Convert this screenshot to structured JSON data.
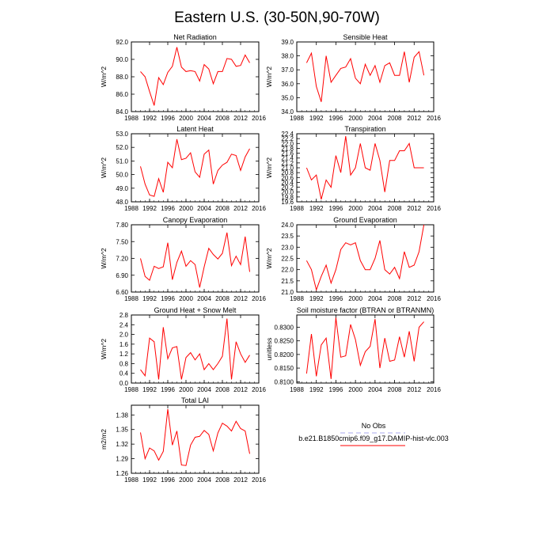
{
  "page": {
    "title": "Eastern U.S. (30-50N,90-70W)"
  },
  "legend": {
    "entries": [
      {
        "label": "No Obs",
        "color": "#aaaaee",
        "dash": true
      },
      {
        "label": "b.e21.B1850cmip6.f09_g17.DAMIP-hist-vlc.003",
        "color": "#ff0000",
        "dash": false
      }
    ]
  },
  "colors": {
    "series": "#ff0000",
    "axis": "#000000",
    "obs": "#aaaaee"
  },
  "chart_data": [
    {
      "type": "line",
      "title": "Net Radiation",
      "ylabel": "W/m^2",
      "xlim": [
        1988,
        2016
      ],
      "xticks": [
        1988,
        1992,
        1996,
        2000,
        2004,
        2008,
        2012,
        2016
      ],
      "ylim": [
        84.0,
        92.0
      ],
      "yticks": [
        "84.0",
        "86.0",
        "88.0",
        "90.0",
        "92.0"
      ],
      "x": [
        1990,
        1991,
        1992,
        1993,
        1994,
        1995,
        1996,
        1997,
        1998,
        1999,
        2000,
        2001,
        2002,
        2003,
        2004,
        2005,
        2006,
        2007,
        2008,
        2009,
        2010,
        2011,
        2012,
        2013,
        2014
      ],
      "series": [
        {
          "values": [
            88.6,
            88.0,
            86.3,
            84.7,
            87.9,
            87.1,
            88.5,
            89.2,
            91.4,
            89.1,
            88.6,
            88.7,
            88.6,
            87.5,
            89.4,
            88.9,
            87.2,
            88.6,
            88.6,
            90.1,
            90.0,
            89.2,
            89.3,
            90.5,
            89.6
          ]
        }
      ]
    },
    {
      "type": "line",
      "title": "Sensible Heat",
      "ylabel": "W/m^2",
      "xlim": [
        1988,
        2016
      ],
      "xticks": [
        1988,
        1992,
        1996,
        2000,
        2004,
        2008,
        2012,
        2016
      ],
      "ylim": [
        34.0,
        39.0
      ],
      "yticks": [
        "34.0",
        "35.0",
        "36.0",
        "37.0",
        "38.0",
        "39.0"
      ],
      "x": [
        1990,
        1991,
        1992,
        1993,
        1994,
        1995,
        1996,
        1997,
        1998,
        1999,
        2000,
        2001,
        2002,
        2003,
        2004,
        2005,
        2006,
        2007,
        2008,
        2009,
        2010,
        2011,
        2012,
        2013,
        2014
      ],
      "series": [
        {
          "values": [
            37.5,
            38.2,
            35.8,
            34.7,
            38.0,
            36.1,
            36.6,
            37.1,
            37.2,
            37.8,
            36.4,
            36.0,
            37.4,
            36.6,
            37.3,
            36.1,
            37.3,
            37.5,
            36.6,
            36.6,
            38.3,
            36.1,
            37.9,
            38.3,
            36.6
          ]
        }
      ]
    },
    {
      "type": "line",
      "title": "Latent Heat",
      "ylabel": "W/m^2",
      "xlim": [
        1988,
        2016
      ],
      "xticks": [
        1988,
        1992,
        1996,
        2000,
        2004,
        2008,
        2012,
        2016
      ],
      "ylim": [
        48.0,
        53.0
      ],
      "yticks": [
        "48.0",
        "49.0",
        "50.0",
        "51.0",
        "52.0",
        "53.0"
      ],
      "x": [
        1990,
        1991,
        1992,
        1993,
        1994,
        1995,
        1996,
        1997,
        1998,
        1999,
        2000,
        2001,
        2002,
        2003,
        2004,
        2005,
        2006,
        2007,
        2008,
        2009,
        2010,
        2011,
        2012,
        2013,
        2014
      ],
      "series": [
        {
          "values": [
            50.6,
            49.3,
            48.5,
            48.4,
            49.7,
            48.7,
            50.9,
            50.5,
            52.6,
            51.1,
            51.2,
            51.6,
            50.2,
            49.8,
            51.5,
            51.8,
            49.3,
            50.3,
            50.7,
            50.9,
            51.5,
            51.4,
            50.3,
            51.3,
            51.9
          ]
        }
      ]
    },
    {
      "type": "line",
      "title": "Transpiration",
      "ylabel": "W/m^2",
      "xlim": [
        1988,
        2016
      ],
      "xticks": [
        1988,
        1992,
        1996,
        2000,
        2004,
        2008,
        2012,
        2016
      ],
      "ylim": [
        19.6,
        22.4
      ],
      "yticks": [
        "19.6",
        "19.8",
        "20.0",
        "20.2",
        "20.4",
        "20.6",
        "20.8",
        "21.0",
        "21.2",
        "21.4",
        "21.6",
        "21.8",
        "22.0",
        "22.2",
        "22.4"
      ],
      "x": [
        1990,
        1991,
        1992,
        1993,
        1994,
        1995,
        1996,
        1997,
        1998,
        1999,
        2000,
        2001,
        2002,
        2003,
        2004,
        2005,
        2006,
        2007,
        2008,
        2009,
        2010,
        2011,
        2012,
        2013,
        2014
      ],
      "series": [
        {
          "values": [
            21.0,
            20.5,
            20.7,
            19.7,
            20.5,
            20.2,
            21.5,
            20.8,
            22.3,
            20.7,
            21.0,
            22.0,
            21.0,
            20.9,
            22.0,
            21.3,
            20.0,
            21.3,
            21.3,
            21.7,
            21.7,
            22.0,
            21.0,
            21.0,
            21.0
          ]
        }
      ]
    },
    {
      "type": "line",
      "title": "Canopy Evaporation",
      "ylabel": "W/m^2",
      "xlim": [
        1988,
        2016
      ],
      "xticks": [
        1988,
        1992,
        1996,
        2000,
        2004,
        2008,
        2012,
        2016
      ],
      "ylim": [
        6.6,
        7.8
      ],
      "yticks": [
        "6.60",
        "6.90",
        "7.20",
        "7.50",
        "7.80"
      ],
      "x": [
        1990,
        1991,
        1992,
        1993,
        1994,
        1995,
        1996,
        1997,
        1998,
        1999,
        2000,
        2001,
        2002,
        2003,
        2004,
        2005,
        2006,
        2007,
        2008,
        2009,
        2010,
        2011,
        2012,
        2013,
        2014
      ],
      "series": [
        {
          "values": [
            7.2,
            6.88,
            6.81,
            7.06,
            7.02,
            7.05,
            7.48,
            6.82,
            7.13,
            7.33,
            7.06,
            7.16,
            7.09,
            6.68,
            7.05,
            7.38,
            7.27,
            7.19,
            7.29,
            7.66,
            7.07,
            7.24,
            7.09,
            7.59,
            6.96
          ]
        }
      ]
    },
    {
      "type": "line",
      "title": "Ground Evaporation",
      "ylabel": "W/m^2",
      "xlim": [
        1988,
        2016
      ],
      "xticks": [
        1988,
        1992,
        1996,
        2000,
        2004,
        2008,
        2012,
        2016
      ],
      "ylim": [
        21.0,
        24.0
      ],
      "yticks": [
        "21.0",
        "21.5",
        "22.0",
        "22.5",
        "23.0",
        "23.5",
        "24.0"
      ],
      "x": [
        1990,
        1991,
        1992,
        1993,
        1994,
        1995,
        1996,
        1997,
        1998,
        1999,
        2000,
        2001,
        2002,
        2003,
        2004,
        2005,
        2006,
        2007,
        2008,
        2009,
        2010,
        2011,
        2012,
        2013,
        2014
      ],
      "series": [
        {
          "values": [
            22.4,
            22.0,
            21.1,
            21.7,
            22.2,
            21.4,
            22.0,
            22.9,
            23.2,
            23.1,
            23.2,
            22.4,
            22.0,
            22.0,
            22.5,
            23.3,
            22.0,
            21.8,
            22.1,
            21.6,
            22.8,
            22.1,
            22.2,
            22.8,
            24.0
          ]
        }
      ]
    },
    {
      "type": "line",
      "title": "Ground Heat + Snow Melt",
      "ylabel": "W/m^2",
      "xlim": [
        1988,
        2016
      ],
      "xticks": [
        1988,
        1992,
        1996,
        2000,
        2004,
        2008,
        2012,
        2016
      ],
      "ylim": [
        0.0,
        2.8
      ],
      "yticks": [
        "0.0",
        "0.4",
        "0.8",
        "1.2",
        "1.6",
        "2.0",
        "2.4",
        "2.8"
      ],
      "x": [
        1990,
        1991,
        1992,
        1993,
        1994,
        1995,
        1996,
        1997,
        1998,
        1999,
        2000,
        2001,
        2002,
        2003,
        2004,
        2005,
        2006,
        2007,
        2008,
        2009,
        2010,
        2011,
        2012,
        2013,
        2014
      ],
      "series": [
        {
          "values": [
            0.55,
            0.3,
            1.85,
            1.7,
            0.15,
            2.3,
            1.0,
            1.45,
            1.5,
            0.15,
            1.05,
            1.25,
            0.95,
            1.2,
            0.55,
            0.8,
            0.55,
            0.8,
            1.1,
            2.65,
            0.15,
            1.7,
            1.2,
            0.85,
            1.15
          ]
        }
      ]
    },
    {
      "type": "line",
      "title": "Soil moisture factor (BTRAN or BTRANMN)",
      "ylabel": "unitless",
      "xlim": [
        1988,
        2016
      ],
      "xticks": [
        1988,
        1992,
        1996,
        2000,
        2004,
        2008,
        2012,
        2016
      ],
      "ylim": [
        0.8095,
        0.8345
      ],
      "yticks": [
        "0.8100",
        "0.8150",
        "0.8200",
        "0.8250",
        "0.8300"
      ],
      "x": [
        1990,
        1991,
        1992,
        1993,
        1994,
        1995,
        1996,
        1997,
        1998,
        1999,
        2000,
        2001,
        2002,
        2003,
        2004,
        2005,
        2006,
        2007,
        2008,
        2009,
        2010,
        2011,
        2012,
        2013,
        2014
      ],
      "series": [
        {
          "values": [
            0.813,
            0.8275,
            0.812,
            0.8235,
            0.826,
            0.811,
            0.8335,
            0.819,
            0.8195,
            0.831,
            0.8255,
            0.816,
            0.821,
            0.823,
            0.833,
            0.815,
            0.826,
            0.8175,
            0.818,
            0.8265,
            0.819,
            0.8285,
            0.8175,
            0.83,
            0.832
          ]
        }
      ]
    },
    {
      "type": "line",
      "title": "Total LAI",
      "ylabel": "m2/m2",
      "xlim": [
        1988,
        2016
      ],
      "xticks": [
        1988,
        1992,
        1996,
        2000,
        2004,
        2008,
        2012,
        2016
      ],
      "ylim": [
        1.26,
        1.4
      ],
      "yticks": [
        "1.26",
        "1.29",
        "1.32",
        "1.35",
        "1.38"
      ],
      "x": [
        1990,
        1991,
        1992,
        1993,
        1994,
        1995,
        1996,
        1997,
        1998,
        1999,
        2000,
        2001,
        2002,
        2003,
        2004,
        2005,
        2006,
        2007,
        2008,
        2009,
        2010,
        2011,
        2012,
        2013,
        2014
      ],
      "series": [
        {
          "values": [
            1.344,
            1.29,
            1.312,
            1.306,
            1.287,
            1.305,
            1.392,
            1.318,
            1.347,
            1.277,
            1.276,
            1.318,
            1.334,
            1.336,
            1.348,
            1.34,
            1.306,
            1.343,
            1.363,
            1.357,
            1.347,
            1.367,
            1.352,
            1.347,
            1.3
          ]
        }
      ]
    }
  ]
}
